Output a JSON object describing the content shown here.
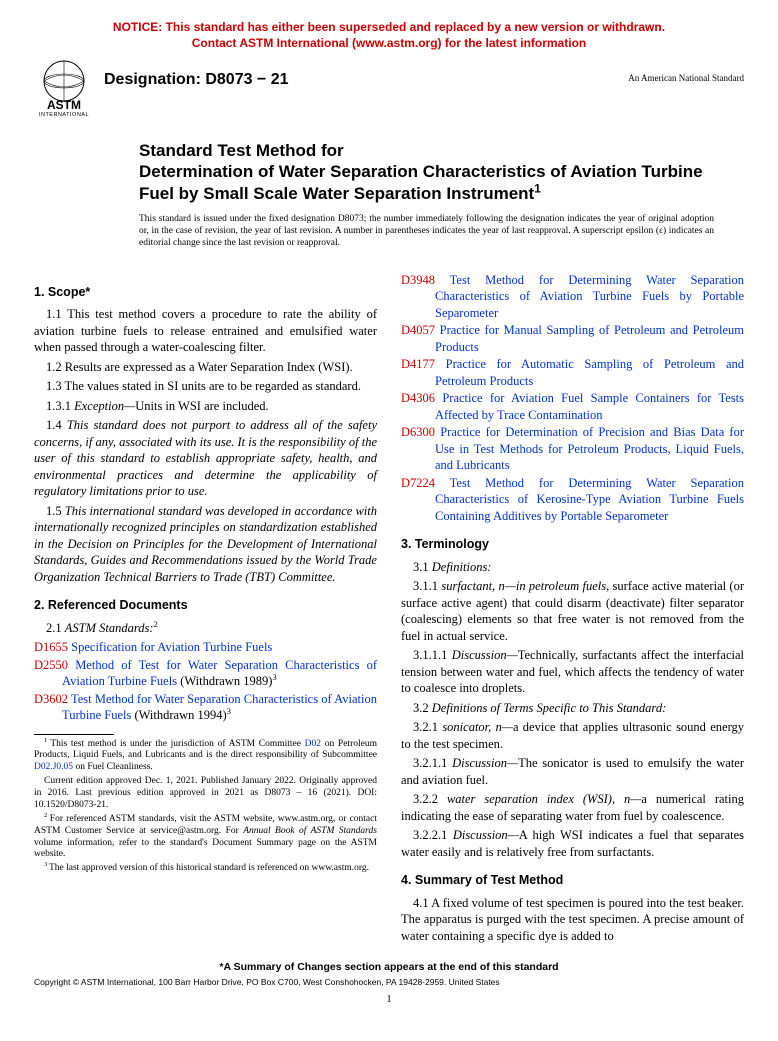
{
  "notice": {
    "line1": "NOTICE: This standard has either been superseded and replaced by a new version or withdrawn.",
    "line2": "Contact ASTM International (www.astm.org) for the latest information",
    "color": "#cc0000"
  },
  "header": {
    "designation_label": "Designation: D8073 − 21",
    "ans_label": "An American National Standard"
  },
  "title": {
    "line1": "Standard Test Method for",
    "line2": "Determination of Water Separation Characteristics of Aviation Turbine Fuel by Small Scale Water Separation Instrument",
    "sup": "1"
  },
  "issue_note": "This standard is issued under the fixed designation D8073; the number immediately following the designation indicates the year of original adoption or, in the case of revision, the year of last revision. A number in parentheses indicates the year of last reapproval. A superscript epsilon (ε) indicates an editorial change since the last revision or reapproval.",
  "sections": {
    "scope": {
      "head": "1. Scope*",
      "p1_1": "1.1 This test method covers a procedure to rate the ability of aviation turbine fuels to release entrained and emulsified water when passed through a water-coalescing filter.",
      "p1_2": "1.2 Results are expressed as a Water Separation Index (WSI).",
      "p1_3": "1.3 The values stated in SI units are to be regarded as standard.",
      "p1_3_1_label": "1.3.1 ",
      "p1_3_1_em": "Exception—",
      "p1_3_1_rest": "Units in WSI are included.",
      "p1_4_lead": "1.4 ",
      "p1_4": "This standard does not purport to address all of the safety concerns, if any, associated with its use. It is the responsibility of the user of this standard to establish appropriate safety, health, and environmental practices and determine the applicability of regulatory limitations prior to use.",
      "p1_5_lead": "1.5 ",
      "p1_5": "This international standard was developed in accordance with internationally recognized principles on standardization established in the Decision on Principles for the Development of International Standards, Guides and Recommendations issued by the World Trade Organization Technical Barriers to Trade (TBT) Committee."
    },
    "refdocs": {
      "head": "2. Referenced Documents",
      "p2_1_lead": "2.1 ",
      "p2_1_em": "ASTM Standards:",
      "p2_1_sup": "2",
      "entries": [
        {
          "code": "D1655",
          "text": "Specification for Aviation Turbine Fuels",
          "tail": ""
        },
        {
          "code": "D2550",
          "text": "Method of Test for Water Separation Characteristics of Aviation Turbine Fuels",
          "tail": " (Withdrawn 1989)",
          "tailsup": "3"
        },
        {
          "code": "D3602",
          "text": "Test Method for Water Separation Characteristics of Aviation Turbine Fuels",
          "tail": " (Withdrawn 1994)",
          "tailsup": "3"
        }
      ],
      "entries_right": [
        {
          "code": "D3948",
          "text": "Test Method for Determining Water Separation Characteristics of Aviation Turbine Fuels by Portable Separometer"
        },
        {
          "code": "D4057",
          "text": "Practice for Manual Sampling of Petroleum and Petroleum Products"
        },
        {
          "code": "D4177",
          "text": "Practice for Automatic Sampling of Petroleum and Petroleum Products"
        },
        {
          "code": "D4306",
          "text": "Practice for Aviation Fuel Sample Containers for Tests Affected by Trace Contamination"
        },
        {
          "code": "D6300",
          "text": "Practice for Determination of Precision and Bias Data for Use in Test Methods for Petroleum Products, Liquid Fuels, and Lubricants"
        },
        {
          "code": "D7224",
          "text": "Test Method for Determining Water Separation Characteristics of Kerosine-Type Aviation Turbine Fuels Containing Additives by Portable Separometer"
        }
      ]
    },
    "terminology": {
      "head": "3. Terminology",
      "p3_1_lead": "3.1 ",
      "p3_1": "Definitions:",
      "p3_1_1_lead": "3.1.1 ",
      "p3_1_1_term": "surfactant, n—in petroleum fuels",
      "p3_1_1_rest": ", surface active material (or surface active agent) that could disarm (deactivate) filter separator (coalescing) elements so that free water is not removed from the fuel in actual service.",
      "p3_1_1_1_lead": "3.1.1.1 ",
      "p3_1_1_1_em": "Discussion—",
      "p3_1_1_1_rest": "Technically, surfactants affect the interfacial tension between water and fuel, which affects the tendency of water to coalesce into droplets.",
      "p3_2_lead": "3.2 ",
      "p3_2": "Definitions of Terms Specific to This Standard:",
      "p3_2_1_lead": "3.2.1 ",
      "p3_2_1_term": "sonicator, n—",
      "p3_2_1_rest": "a device that applies ultrasonic sound energy to the test specimen.",
      "p3_2_1_1_lead": "3.2.1.1 ",
      "p3_2_1_1_em": "Discussion—",
      "p3_2_1_1_rest": "The sonicator is used to emulsify the water and aviation fuel.",
      "p3_2_2_lead": "3.2.2 ",
      "p3_2_2_term": "water separation index (WSI), n—",
      "p3_2_2_rest": "a numerical rating indicating the ease of separating water from fuel by coalescence.",
      "p3_2_2_1_lead": "3.2.2.1 ",
      "p3_2_2_1_em": "Discussion—",
      "p3_2_2_1_rest": "A high WSI indicates a fuel that separates water easily and is relatively free from surfactants."
    },
    "summary": {
      "head": "4. Summary of Test Method",
      "p4_1": "4.1 A fixed volume of test specimen is poured into the test beaker. The apparatus is purged with the test specimen. A precise amount of water containing a specific dye is added to"
    }
  },
  "footnotes": {
    "f1_a": "This test method is under the jurisdiction of ASTM Committee ",
    "f1_link1": "D02",
    "f1_b": " on Petroleum Products, Liquid Fuels, and Lubricants and is the direct responsibility of Subcommittee ",
    "f1_link2": "D02.J0.05",
    "f1_c": " on Fuel Cleanliness.",
    "f1_2": "Current edition approved Dec. 1, 2021. Published January 2022. Originally approved in 2016. Last previous edition approved in 2021 as D8073 – 16 (2021). DOI: 10.1520/D8073-21.",
    "f2_a": "For referenced ASTM standards, visit the ASTM website, www.astm.org, or contact ASTM Customer Service at service@astm.org. For ",
    "f2_em": "Annual Book of ASTM Standards",
    "f2_b": " volume information, refer to the standard's Document Summary page on the ASTM website.",
    "f3": "The last approved version of this historical standard is referenced on www.astm.org."
  },
  "footer": {
    "summary": "*A Summary of Changes section appears at the end of this standard",
    "copyright": "Copyright © ASTM International, 100 Barr Harbor Drive, PO Box C700, West Conshohocken, PA 19428-2959. United States",
    "page": "1"
  },
  "colors": {
    "link": "#0033cc",
    "refcode": "#cc0000"
  }
}
